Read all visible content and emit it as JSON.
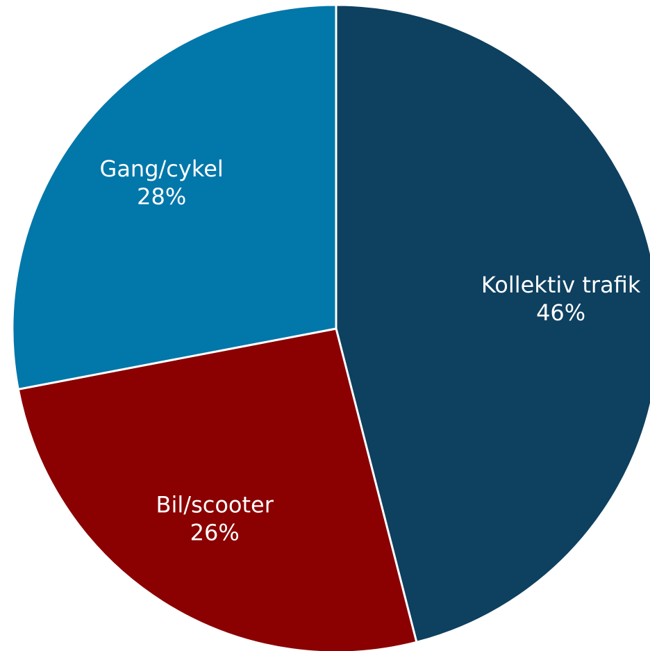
{
  "chart_data": {
    "type": "pie",
    "categories": [
      "Kollektiv trafik",
      "Bil/scooter",
      "Gang/cykel"
    ],
    "values": [
      46,
      26,
      28
    ],
    "value_labels": [
      "46%",
      "26%",
      "28%"
    ],
    "colors": [
      "#0e4060",
      "#8b0000",
      "#0277aa"
    ]
  }
}
